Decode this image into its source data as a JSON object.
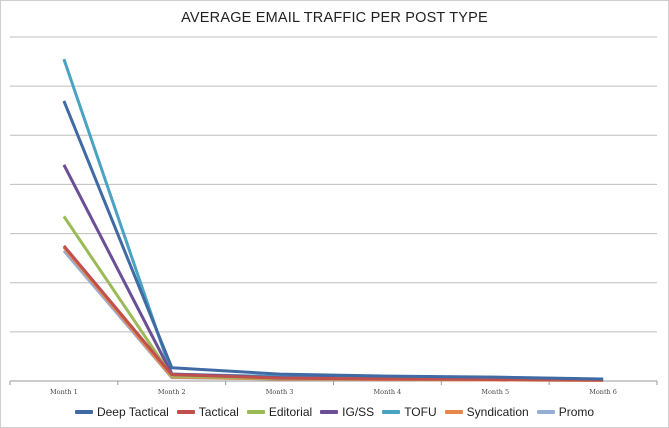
{
  "chart_data": {
    "type": "line",
    "title": "AVERAGE EMAIL TRAFFIC PER POST TYPE",
    "xlabel": "",
    "ylabel": "",
    "categories": [
      "Month 1",
      "Month 2",
      "Month 3",
      "Month 4",
      "Month 5",
      "Month 6"
    ],
    "ylim": [
      0,
      7
    ],
    "y_gridlines": 7,
    "grid": true,
    "y_tick_labels_visible": false,
    "legend_position": "bottom",
    "series": [
      {
        "name": "Deep Tactical",
        "color": "#3f6aa4",
        "values": [
          5.7,
          0.27,
          0.14,
          0.1,
          0.08,
          0.04
        ]
      },
      {
        "name": "Tactical",
        "color": "#c0504d",
        "values": [
          2.75,
          0.13,
          0.06,
          0.04,
          0.03,
          0.02
        ]
      },
      {
        "name": "Editorial",
        "color": "#9bbb59",
        "values": [
          3.35,
          0.1,
          0.05,
          0.04,
          0.03,
          0.02
        ]
      },
      {
        "name": "IG/SS",
        "color": "#6b4f96",
        "values": [
          4.4,
          0.14,
          0.07,
          0.05,
          0.04,
          0.02
        ]
      },
      {
        "name": "TOFU",
        "color": "#4aa3c2",
        "values": [
          6.55,
          0.14,
          0.09,
          0.07,
          0.06,
          0.03
        ]
      },
      {
        "name": "Syndication",
        "color": "#e8884a",
        "values": [
          2.72,
          0.08,
          0.04,
          0.03,
          0.02,
          0.01
        ]
      },
      {
        "name": "Promo",
        "color": "#94aed4",
        "values": [
          2.65,
          0.07,
          0.04,
          0.03,
          0.02,
          0.01
        ]
      }
    ]
  }
}
